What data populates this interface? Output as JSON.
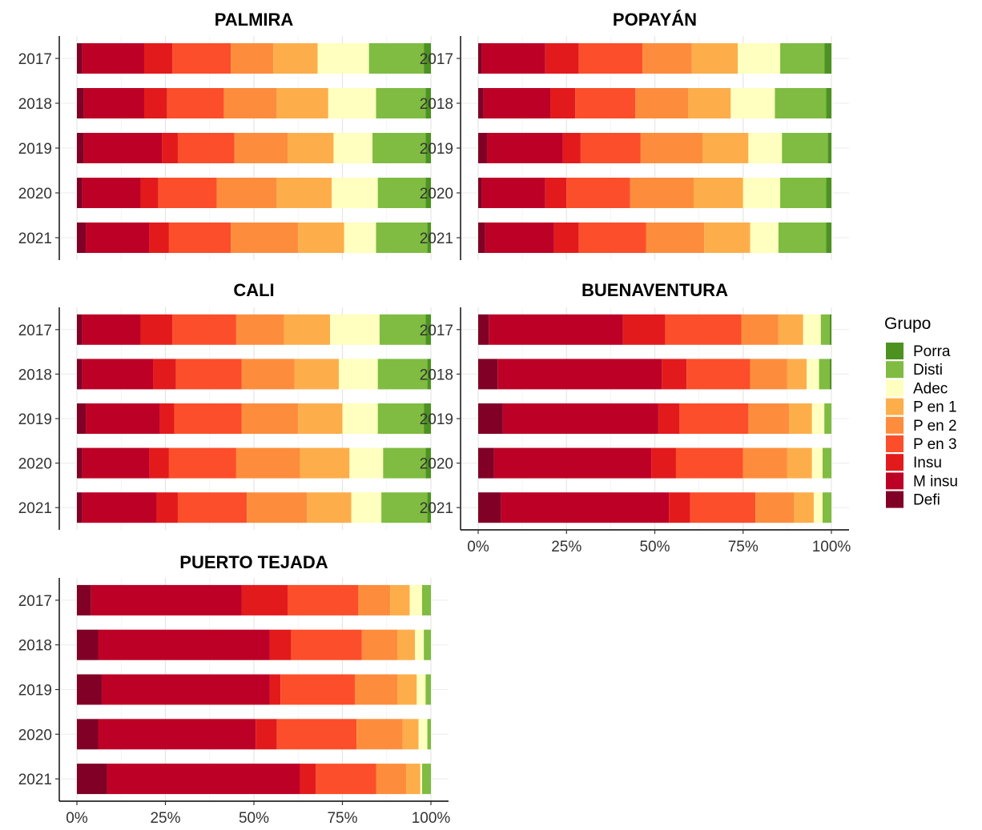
{
  "legend": {
    "title": "Grupo",
    "position": "right",
    "items": [
      {
        "label": "Porra",
        "color": "#4d9221"
      },
      {
        "label": "Disti",
        "color": "#7fbc41"
      },
      {
        "label": "Adec",
        "color": "#ffffbf"
      },
      {
        "label": "P en 1",
        "color": "#fdae4b"
      },
      {
        "label": "P en 2",
        "color": "#fd8d3c"
      },
      {
        "label": "P en 3",
        "color": "#fc4e2a"
      },
      {
        "label": "Insu",
        "color": "#e31a1c"
      },
      {
        "label": "M insu",
        "color": "#bd0026"
      },
      {
        "label": "Defi",
        "color": "#800026"
      }
    ]
  },
  "chart_data": {
    "type": "bar",
    "orientation": "horizontal",
    "stacked": true,
    "normalized": true,
    "categories": [
      "2017",
      "2018",
      "2019",
      "2020",
      "2021"
    ],
    "segment_order_from_left": [
      "Defi",
      "M insu",
      "Insu",
      "P en 3",
      "P en 2",
      "P en 1",
      "Adec",
      "Disti",
      "Porra"
    ],
    "xlim": [
      0,
      100
    ],
    "xticks": [
      "0%",
      "25%",
      "50%",
      "75%",
      "100%"
    ],
    "grid": true,
    "panels": [
      {
        "title": "PALMIRA",
        "values": {
          "2017": [
            1.5,
            17.5,
            8,
            16.5,
            12,
            12.5,
            14.5,
            15.5,
            2
          ],
          "2018": [
            2,
            17,
            6.5,
            16,
            15,
            14.5,
            13.5,
            14,
            1.5
          ],
          "2019": [
            2,
            22,
            4.5,
            16,
            15,
            13,
            11,
            15,
            1.5
          ],
          "2020": [
            1.5,
            16.5,
            5,
            16.5,
            17,
            15.5,
            13,
            13.5,
            1.5
          ],
          "2021": [
            2.5,
            18,
            5.5,
            17.5,
            19,
            13,
            9,
            14.5,
            1
          ]
        }
      },
      {
        "title": "POPAYÁN",
        "values": {
          "2017": [
            1,
            18,
            9.5,
            18,
            14,
            13,
            12,
            12.5,
            2
          ],
          "2018": [
            1.5,
            19,
            7,
            17,
            15,
            12,
            12.5,
            14.5,
            1.5
          ],
          "2019": [
            2.5,
            21.5,
            5,
            17,
            17.5,
            13,
            9.5,
            13,
            1
          ],
          "2020": [
            1,
            18,
            6,
            18,
            18,
            14,
            10.5,
            13,
            1.5
          ],
          "2021": [
            2,
            19.5,
            7,
            19,
            16.5,
            13,
            8,
            13.5,
            1.5
          ]
        }
      },
      {
        "title": "CALI",
        "values": {
          "2017": [
            1.5,
            16.5,
            9,
            18,
            13.5,
            13,
            14,
            13,
            1.5
          ],
          "2018": [
            1.5,
            20,
            6.5,
            18.5,
            15,
            12.5,
            11,
            14,
            1
          ],
          "2019": [
            2.5,
            21,
            4,
            19,
            16,
            12.5,
            10,
            13,
            2
          ],
          "2020": [
            1.5,
            19,
            5.5,
            19,
            18,
            14,
            9.5,
            12,
            1.5
          ],
          "2021": [
            1.5,
            21,
            6,
            19.5,
            17,
            12.5,
            8.5,
            13,
            1
          ]
        }
      },
      {
        "title": "BUENAVENTURA",
        "values": {
          "2017": [
            3,
            38,
            12,
            21.5,
            10.5,
            7,
            5,
            2.5,
            0.5
          ],
          "2018": [
            5.5,
            46.5,
            7,
            18,
            10.5,
            5.5,
            3.5,
            3,
            0.5
          ],
          "2019": [
            7,
            44,
            6,
            19.5,
            11.5,
            6.5,
            3.5,
            2,
            0
          ],
          "2020": [
            4.5,
            44.5,
            7,
            19,
            12.5,
            7,
            3,
            2.5,
            0
          ],
          "2021": [
            6.5,
            47.5,
            6,
            18.5,
            11,
            5.5,
            2.5,
            2.5,
            0
          ]
        }
      },
      {
        "title": "PUERTO TEJADA",
        "values": {
          "2017": [
            4,
            42.5,
            13,
            20,
            9,
            5.5,
            3.5,
            2.5,
            0
          ],
          "2018": [
            6,
            48.5,
            6,
            20,
            10,
            5,
            2.5,
            2,
            0
          ],
          "2019": [
            7,
            47.5,
            3,
            21,
            12,
            5.5,
            2.5,
            1.5,
            0
          ],
          "2020": [
            6,
            44.5,
            6,
            22.5,
            13,
            4.5,
            2.5,
            1,
            0
          ],
          "2021": [
            8.5,
            54.5,
            4.5,
            17,
            8.5,
            4,
            0.5,
            2.5,
            0
          ]
        }
      }
    ]
  }
}
